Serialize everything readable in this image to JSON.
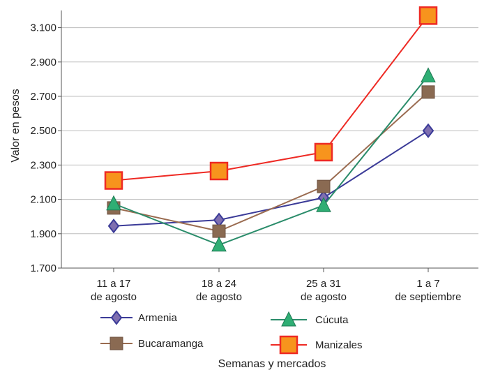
{
  "chart_data": {
    "type": "line",
    "categories": [
      [
        "11 a 17",
        "de agosto"
      ],
      [
        "18 a 24",
        "de agosto"
      ],
      [
        "25 a 31",
        "de agosto"
      ],
      [
        "1 a 7",
        "de septiembre"
      ]
    ],
    "ylabel": "Valor en pesos",
    "xlabel": "Semanas y mercados",
    "ylim": [
      1700,
      3200
    ],
    "yticks": [
      1700,
      1900,
      2100,
      2300,
      2500,
      2700,
      2900,
      3100
    ],
    "ytick_labels": [
      "1.700",
      "1.900",
      "2.100",
      "2.300",
      "2.500",
      "2.700",
      "2.900",
      "3.100"
    ],
    "grid": "horizontal",
    "legend_position": "bottom",
    "series": [
      {
        "name": "Armenia",
        "color": "#3b3b98",
        "marker": "diamond",
        "values": [
          1945,
          1980,
          2110,
          2500
        ]
      },
      {
        "name": "Bucaramanga",
        "color": "#9a6b50",
        "marker": "square",
        "values": [
          2050,
          1915,
          2175,
          2725
        ]
      },
      {
        "name": "Cúcuta",
        "color": "#2a8c6a",
        "marker": "triangle",
        "values": [
          2075,
          1835,
          2065,
          2820
        ]
      },
      {
        "name": "Manizales",
        "color": "#ee2a24",
        "marker": "square",
        "values": [
          2210,
          2265,
          2375,
          3170
        ]
      }
    ]
  }
}
